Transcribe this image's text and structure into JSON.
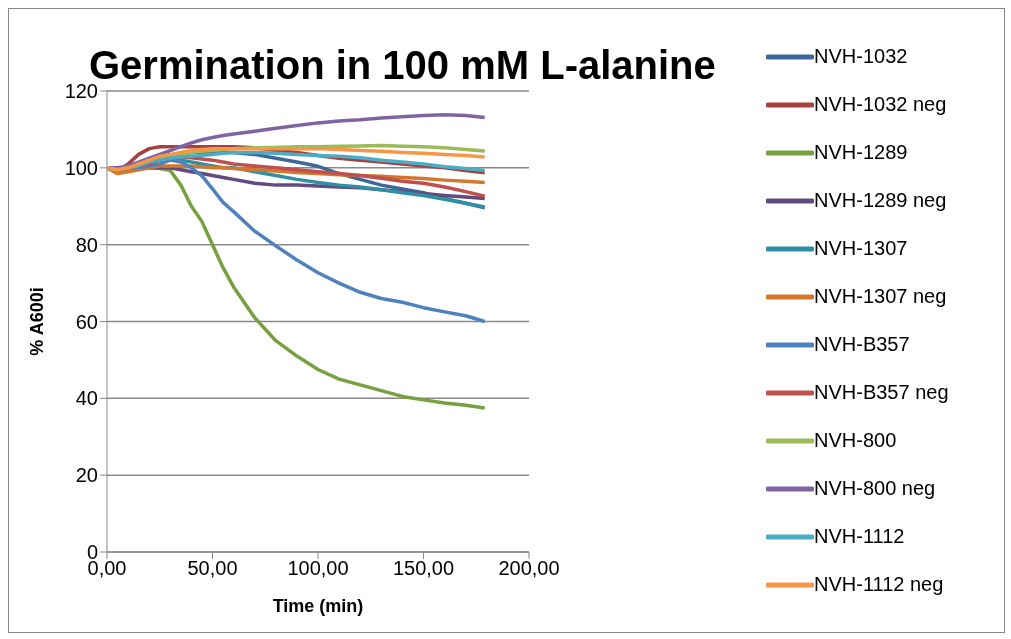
{
  "chart_data": {
    "type": "line",
    "title": "Germination in 100 mM L-alanine",
    "xlabel": "Time (min)",
    "ylabel": "% A600i",
    "x": [
      0,
      5,
      10,
      15,
      20,
      25,
      30,
      35,
      40,
      45,
      50,
      55,
      60,
      70,
      80,
      90,
      100,
      110,
      120,
      130,
      140,
      150,
      160,
      170,
      179
    ],
    "xlim": [
      0,
      200
    ],
    "xticks": [
      {
        "value": 0,
        "label": "0,00"
      },
      {
        "value": 50,
        "label": "50,00"
      },
      {
        "value": 100,
        "label": "100,00"
      },
      {
        "value": 150,
        "label": "150,00"
      },
      {
        "value": 200,
        "label": "200,00"
      }
    ],
    "ylim": [
      0,
      120
    ],
    "yticks": [
      0,
      20,
      40,
      60,
      80,
      100,
      120
    ],
    "grid": "y",
    "legend": "right",
    "marker": "none",
    "line_style": "solid",
    "series": [
      {
        "name": "NVH-1032",
        "color": "#3c6898",
        "values": [
          100,
          99.5,
          100,
          101,
          102,
          102.5,
          103,
          103.5,
          104,
          104,
          104,
          104,
          104,
          103.5,
          102.5,
          101.5,
          100.4,
          98.5,
          97,
          95.5,
          94.5,
          93.5,
          92,
          90.8,
          89.6
        ]
      },
      {
        "name": "NVH-1032 neg",
        "color": "#a5413f",
        "values": [
          100,
          99,
          101,
          103.5,
          105,
          105.5,
          105.5,
          105.5,
          105.5,
          105.5,
          105.5,
          105.5,
          105.5,
          105.2,
          104.5,
          104,
          103.2,
          102.5,
          102,
          101.5,
          101,
          100.5,
          100,
          99.3,
          98.7
        ]
      },
      {
        "name": "NVH-1289",
        "color": "#77a03f",
        "values": [
          null,
          null,
          100,
          100,
          100,
          99.8,
          99.3,
          95.5,
          90,
          86,
          80,
          74,
          69,
          61,
          55,
          51,
          47.5,
          45,
          43.5,
          42,
          40.5,
          39.6,
          38.8,
          38.2,
          37.5
        ]
      },
      {
        "name": "NVH-1289 neg",
        "color": "#614a7e",
        "values": [
          100,
          99,
          99.5,
          100,
          100,
          100,
          100,
          99.5,
          99,
          98.5,
          98,
          97.5,
          97,
          96,
          95.5,
          95.5,
          95.3,
          95,
          94.8,
          94.3,
          93.8,
          93.3,
          92.8,
          92.4,
          92
        ]
      },
      {
        "name": "NVH-1307",
        "color": "#2f8fa5",
        "values": [
          100,
          99.5,
          100,
          101,
          101.5,
          102,
          102,
          102,
          101.5,
          101,
          100.5,
          100,
          100,
          99,
          98,
          97,
          96.2,
          95.5,
          95,
          94.3,
          93.5,
          92.8,
          91.8,
          90.8,
          89.8
        ]
      },
      {
        "name": "NVH-1307 neg",
        "color": "#d3782b",
        "values": [
          100,
          98.5,
          99,
          99.5,
          100,
          100.5,
          100.5,
          100.5,
          100.5,
          100.3,
          100,
          100,
          99.8,
          99.5,
          99.2,
          98.8,
          98.5,
          98.2,
          98,
          97.8,
          97.5,
          97.2,
          96.8,
          96.5,
          96.2
        ]
      },
      {
        "name": "NVH-B357",
        "color": "#4f81bd",
        "values": [
          100,
          100,
          100,
          100,
          100.5,
          101,
          102,
          101.5,
          100,
          97.9,
          94.5,
          91,
          88.6,
          83.5,
          79.7,
          76,
          72.7,
          70,
          67.6,
          66,
          65,
          63.6,
          62.5,
          61.5,
          60
        ]
      },
      {
        "name": "NVH-B357 neg",
        "color": "#c0504d",
        "values": [
          100,
          100,
          100,
          100.5,
          101,
          102,
          102.5,
          102.8,
          102.6,
          102.3,
          102,
          101.5,
          101,
          100.5,
          100,
          99.5,
          99,
          98.5,
          98,
          97.3,
          96.5,
          96,
          95,
          93.8,
          92.6
        ]
      },
      {
        "name": "NVH-800",
        "color": "#9bbb59",
        "values": [
          100,
          99.5,
          100,
          101,
          102,
          102.5,
          103,
          103.5,
          104,
          104.3,
          104.5,
          104.8,
          105,
          105.2,
          105.3,
          105.5,
          105.5,
          105.6,
          105.7,
          105.8,
          105.6,
          105.5,
          105.2,
          104.8,
          104.4
        ]
      },
      {
        "name": "NVH-800 neg",
        "color": "#8064a2",
        "values": [
          100,
          100,
          100.5,
          101.5,
          102.5,
          103.5,
          104.5,
          105.5,
          106.5,
          107.3,
          107.9,
          108.4,
          108.8,
          109.5,
          110.3,
          111,
          111.7,
          112.2,
          112.5,
          113,
          113.3,
          113.6,
          113.8,
          113.6,
          113.1
        ]
      },
      {
        "name": "NVH-1112",
        "color": "#4bacc6",
        "values": [
          100,
          99.5,
          100,
          100.5,
          101.5,
          102,
          102.5,
          102.8,
          103,
          103.3,
          103.5,
          103.8,
          104,
          104,
          103.8,
          103.5,
          103.2,
          103,
          102.6,
          102,
          101.5,
          101,
          100.3,
          99.8,
          99.3
        ]
      },
      {
        "name": "NVH-1112 neg",
        "color": "#f79646",
        "values": [
          100,
          99.5,
          100,
          101,
          102,
          103,
          103.5,
          104,
          104.5,
          104.8,
          105,
          105,
          105,
          105,
          105,
          105,
          105,
          104.8,
          104.5,
          104.3,
          104,
          103.8,
          103.5,
          103.2,
          102.8
        ]
      }
    ]
  }
}
